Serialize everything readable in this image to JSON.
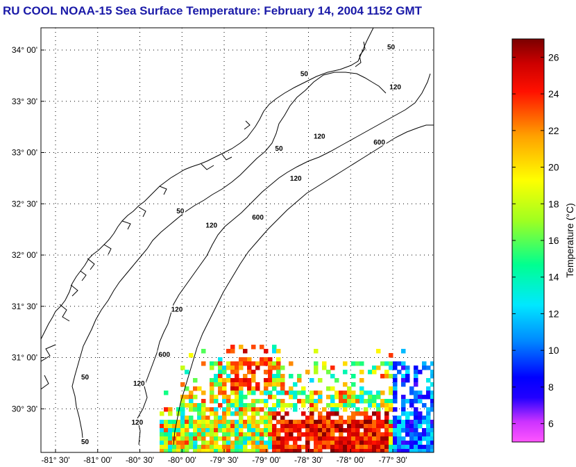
{
  "title": "RU COOL  NOAA-15  Sea Surface Temperature:  February 14, 2004 1152 GMT",
  "map": {
    "lon_labels": [
      "-81° 30'",
      "-81° 00'",
      "-80° 30'",
      "-80° 00'",
      "-79° 30'",
      "-79° 00'",
      "-78° 30'",
      "-78° 00'",
      "-77° 30'"
    ],
    "lat_labels": [
      "34° 00'",
      "33° 30'",
      "33° 00'",
      "32° 30'",
      "32° 00'",
      "31° 30'",
      "31° 00'",
      "30° 30'"
    ],
    "isobath_labels": [
      {
        "text": "50",
        "lon": -77.52,
        "lat": 34.02
      },
      {
        "text": "50",
        "lon": -78.55,
        "lat": 33.76
      },
      {
        "text": "120",
        "lon": -77.47,
        "lat": 33.63
      },
      {
        "text": "120",
        "lon": -78.37,
        "lat": 33.15
      },
      {
        "text": "600",
        "lon": -77.66,
        "lat": 33.09
      },
      {
        "text": "50",
        "lon": -78.85,
        "lat": 33.03
      },
      {
        "text": "120",
        "lon": -78.65,
        "lat": 32.74
      },
      {
        "text": "50",
        "lon": -80.02,
        "lat": 32.42
      },
      {
        "text": "600",
        "lon": -79.1,
        "lat": 32.36
      },
      {
        "text": "120",
        "lon": -79.65,
        "lat": 32.28
      },
      {
        "text": "120",
        "lon": -80.06,
        "lat": 31.46
      },
      {
        "text": "600",
        "lon": -80.21,
        "lat": 31.02
      },
      {
        "text": "50",
        "lon": -81.15,
        "lat": 30.8
      },
      {
        "text": "120",
        "lon": -80.51,
        "lat": 30.74
      },
      {
        "text": "120",
        "lon": -80.53,
        "lat": 30.36
      },
      {
        "text": "50",
        "lon": -81.15,
        "lat": 30.17
      }
    ]
  },
  "colorbar": {
    "label": "Temperature (°C)",
    "min": 5,
    "max": 27,
    "ticks": [
      6,
      8,
      10,
      12,
      14,
      16,
      18,
      20,
      22,
      24,
      26
    ]
  },
  "colors": {
    "title": "#1a1aa8",
    "scale": [
      "#ff44ff",
      "#aa22ff",
      "#0000ff",
      "#0090ff",
      "#00e0ff",
      "#00ff80",
      "#c0ff00",
      "#ffff00",
      "#ffa000",
      "#ff0000",
      "#800000"
    ]
  }
}
